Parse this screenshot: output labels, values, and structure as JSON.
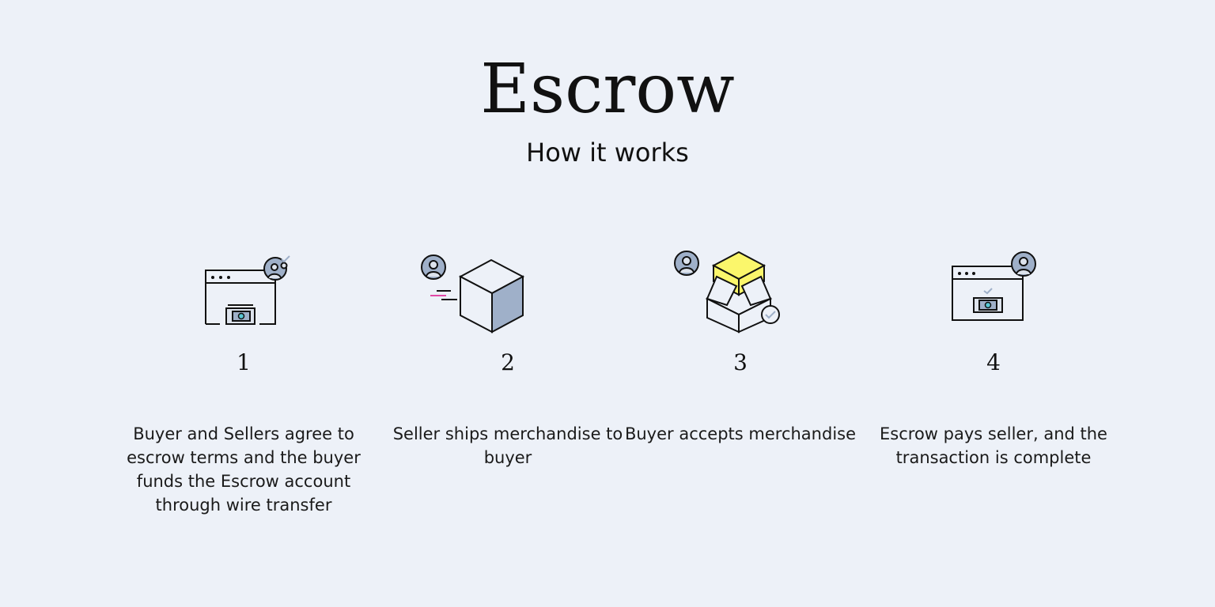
{
  "header": {
    "title": "Escrow",
    "subtitle": "How it works"
  },
  "colors": {
    "background": "#edf1f8",
    "icon_fill": "#9fb0c9",
    "icon_accent_yellow": "#fbf66b",
    "icon_teal": "#58c7d4",
    "icon_pink": "#e24aa6"
  },
  "steps": [
    {
      "number": "1",
      "description": "Buyer and Sellers agree to escrow terms and the buyer funds the Escrow account through wire transfer",
      "icon": "browser-money-user-icon"
    },
    {
      "number": "2",
      "description": "Seller ships merchandise to buyer",
      "icon": "shipping-box-user-icon"
    },
    {
      "number": "3",
      "description": "Buyer accepts merchandise",
      "icon": "open-box-check-icon"
    },
    {
      "number": "4",
      "description": "Escrow pays seller, and the transaction is complete",
      "icon": "browser-payment-user-icon"
    }
  ]
}
